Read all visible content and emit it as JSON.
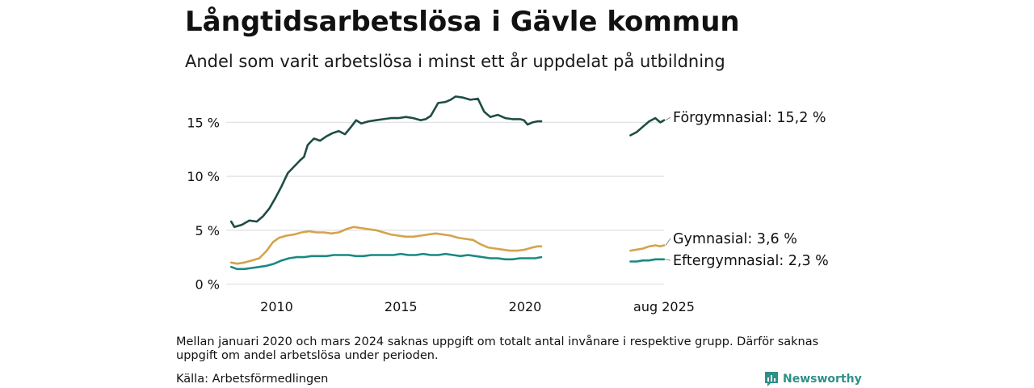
{
  "title": "Långtidsarbetslösa i Gävle kommun",
  "subtitle": "Andel som varit arbetslösa i minst ett år uppdelat på utbildning",
  "note": "Mellan januari 2020 och mars 2024 saknas uppgift om totalt antal invånare i respektive grupp. Därför saknas uppgift om andel arbetslösa under perioden.",
  "source": "Källa: Arbetsförmedlingen",
  "brand": "Newsworthy",
  "chart_data": {
    "type": "line",
    "y_ticks": [
      {
        "value": 0,
        "label": "0 %"
      },
      {
        "value": 5,
        "label": "5 %"
      },
      {
        "value": 10,
        "label": "10 %"
      },
      {
        "value": 15,
        "label": "15 %"
      }
    ],
    "x_ticks": [
      {
        "value": 2010.0,
        "label": "2010"
      },
      {
        "value": 2015.0,
        "label": "2015"
      },
      {
        "value": 2020.0,
        "label": "2020"
      },
      {
        "value": 2025.6,
        "label": "aug 2025"
      }
    ],
    "x_unit": "year",
    "ylim": [
      0,
      17.5
    ],
    "grid": "horizontal",
    "gap": {
      "from": 2020.7,
      "to": 2024.25
    },
    "series": [
      {
        "name": "Förgymnasial",
        "label": "Förgymnasial: 15,2 %",
        "color": "#1e4d45",
        "points": [
          [
            2008.17,
            5.8
          ],
          [
            2008.3,
            5.3
          ],
          [
            2008.6,
            5.5
          ],
          [
            2008.9,
            5.9
          ],
          [
            2009.2,
            5.8
          ],
          [
            2009.45,
            6.3
          ],
          [
            2009.7,
            7.0
          ],
          [
            2009.95,
            8.0
          ],
          [
            2010.2,
            9.1
          ],
          [
            2010.45,
            10.3
          ],
          [
            2010.7,
            10.9
          ],
          [
            2010.95,
            11.5
          ],
          [
            2011.1,
            11.8
          ],
          [
            2011.25,
            12.9
          ],
          [
            2011.5,
            13.5
          ],
          [
            2011.75,
            13.3
          ],
          [
            2012.0,
            13.7
          ],
          [
            2012.25,
            14.0
          ],
          [
            2012.5,
            14.2
          ],
          [
            2012.75,
            13.9
          ],
          [
            2013.0,
            14.6
          ],
          [
            2013.2,
            15.2
          ],
          [
            2013.4,
            14.9
          ],
          [
            2013.7,
            15.1
          ],
          [
            2014.0,
            15.2
          ],
          [
            2014.3,
            15.3
          ],
          [
            2014.6,
            15.4
          ],
          [
            2014.9,
            15.4
          ],
          [
            2015.2,
            15.5
          ],
          [
            2015.5,
            15.4
          ],
          [
            2015.8,
            15.2
          ],
          [
            2016.0,
            15.3
          ],
          [
            2016.2,
            15.6
          ],
          [
            2016.5,
            16.8
          ],
          [
            2016.8,
            16.9
          ],
          [
            2017.0,
            17.1
          ],
          [
            2017.2,
            17.4
          ],
          [
            2017.5,
            17.3
          ],
          [
            2017.8,
            17.1
          ],
          [
            2018.1,
            17.2
          ],
          [
            2018.35,
            16.0
          ],
          [
            2018.6,
            15.5
          ],
          [
            2018.9,
            15.7
          ],
          [
            2019.2,
            15.4
          ],
          [
            2019.5,
            15.3
          ],
          [
            2019.8,
            15.3
          ],
          [
            2019.95,
            15.2
          ],
          [
            2020.1,
            14.8
          ],
          [
            2020.3,
            15.0
          ],
          [
            2020.5,
            15.1
          ],
          [
            2020.65,
            15.1
          ]
        ],
        "points_after": [
          [
            2024.25,
            13.8
          ],
          [
            2024.5,
            14.1
          ],
          [
            2024.75,
            14.6
          ],
          [
            2025.0,
            15.1
          ],
          [
            2025.25,
            15.4
          ],
          [
            2025.45,
            15.0
          ],
          [
            2025.6,
            15.2
          ]
        ]
      },
      {
        "name": "Gymnasial",
        "label": "Gymnasial:  3,6 %",
        "color": "#d4a34c",
        "points": [
          [
            2008.17,
            2.0
          ],
          [
            2008.4,
            1.9
          ],
          [
            2008.7,
            2.0
          ],
          [
            2009.0,
            2.2
          ],
          [
            2009.3,
            2.4
          ],
          [
            2009.6,
            3.1
          ],
          [
            2009.85,
            3.9
          ],
          [
            2010.1,
            4.3
          ],
          [
            2010.4,
            4.5
          ],
          [
            2010.7,
            4.6
          ],
          [
            2011.0,
            4.8
          ],
          [
            2011.3,
            4.9
          ],
          [
            2011.6,
            4.8
          ],
          [
            2011.9,
            4.8
          ],
          [
            2012.2,
            4.7
          ],
          [
            2012.5,
            4.8
          ],
          [
            2012.8,
            5.1
          ],
          [
            2013.1,
            5.3
          ],
          [
            2013.4,
            5.2
          ],
          [
            2013.7,
            5.1
          ],
          [
            2014.0,
            5.0
          ],
          [
            2014.3,
            4.8
          ],
          [
            2014.6,
            4.6
          ],
          [
            2014.9,
            4.5
          ],
          [
            2015.2,
            4.4
          ],
          [
            2015.5,
            4.4
          ],
          [
            2015.8,
            4.5
          ],
          [
            2016.1,
            4.6
          ],
          [
            2016.4,
            4.7
          ],
          [
            2016.7,
            4.6
          ],
          [
            2017.0,
            4.5
          ],
          [
            2017.3,
            4.3
          ],
          [
            2017.6,
            4.2
          ],
          [
            2017.9,
            4.1
          ],
          [
            2018.2,
            3.7
          ],
          [
            2018.5,
            3.4
          ],
          [
            2018.8,
            3.3
          ],
          [
            2019.1,
            3.2
          ],
          [
            2019.4,
            3.1
          ],
          [
            2019.7,
            3.1
          ],
          [
            2020.0,
            3.2
          ],
          [
            2020.3,
            3.4
          ],
          [
            2020.5,
            3.5
          ],
          [
            2020.65,
            3.5
          ]
        ],
        "points_after": [
          [
            2024.25,
            3.1
          ],
          [
            2024.5,
            3.2
          ],
          [
            2024.75,
            3.3
          ],
          [
            2025.0,
            3.5
          ],
          [
            2025.25,
            3.6
          ],
          [
            2025.45,
            3.5
          ],
          [
            2025.6,
            3.6
          ]
        ]
      },
      {
        "name": "Eftergymnasial",
        "label": "Eftergymnasial:  2,3 %",
        "color": "#188a82",
        "points": [
          [
            2008.17,
            1.6
          ],
          [
            2008.4,
            1.4
          ],
          [
            2008.7,
            1.4
          ],
          [
            2009.0,
            1.5
          ],
          [
            2009.3,
            1.6
          ],
          [
            2009.6,
            1.7
          ],
          [
            2009.9,
            1.9
          ],
          [
            2010.2,
            2.2
          ],
          [
            2010.5,
            2.4
          ],
          [
            2010.8,
            2.5
          ],
          [
            2011.1,
            2.5
          ],
          [
            2011.4,
            2.6
          ],
          [
            2011.7,
            2.6
          ],
          [
            2012.0,
            2.6
          ],
          [
            2012.3,
            2.7
          ],
          [
            2012.6,
            2.7
          ],
          [
            2012.9,
            2.7
          ],
          [
            2013.2,
            2.6
          ],
          [
            2013.5,
            2.6
          ],
          [
            2013.8,
            2.7
          ],
          [
            2014.1,
            2.7
          ],
          [
            2014.4,
            2.7
          ],
          [
            2014.7,
            2.7
          ],
          [
            2015.0,
            2.8
          ],
          [
            2015.3,
            2.7
          ],
          [
            2015.6,
            2.7
          ],
          [
            2015.9,
            2.8
          ],
          [
            2016.2,
            2.7
          ],
          [
            2016.5,
            2.7
          ],
          [
            2016.8,
            2.8
          ],
          [
            2017.1,
            2.7
          ],
          [
            2017.4,
            2.6
          ],
          [
            2017.7,
            2.7
          ],
          [
            2018.0,
            2.6
          ],
          [
            2018.3,
            2.5
          ],
          [
            2018.6,
            2.4
          ],
          [
            2018.9,
            2.4
          ],
          [
            2019.2,
            2.3
          ],
          [
            2019.5,
            2.3
          ],
          [
            2019.8,
            2.4
          ],
          [
            2020.1,
            2.4
          ],
          [
            2020.4,
            2.4
          ],
          [
            2020.65,
            2.5
          ]
        ],
        "points_after": [
          [
            2024.25,
            2.1
          ],
          [
            2024.5,
            2.1
          ],
          [
            2024.75,
            2.2
          ],
          [
            2025.0,
            2.2
          ],
          [
            2025.25,
            2.3
          ],
          [
            2025.45,
            2.3
          ],
          [
            2025.6,
            2.3
          ]
        ]
      }
    ]
  }
}
